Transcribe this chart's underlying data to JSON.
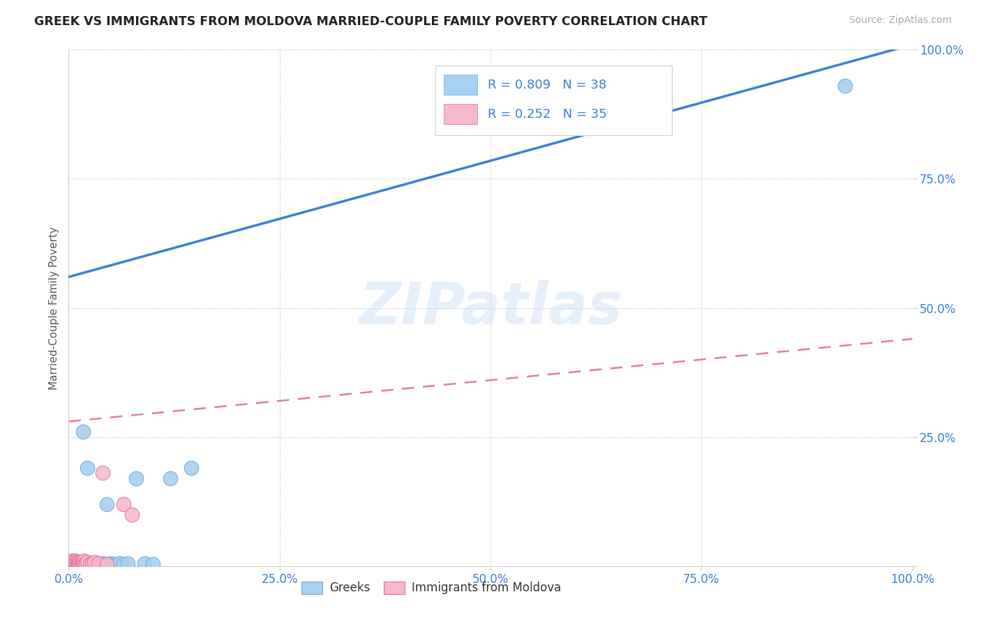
{
  "title": "GREEK VS IMMIGRANTS FROM MOLDOVA MARRIED-COUPLE FAMILY POVERTY CORRELATION CHART",
  "source": "Source: ZipAtlas.com",
  "ylabel": "Married-Couple Family Poverty",
  "xlim": [
    0,
    1
  ],
  "ylim": [
    0,
    1
  ],
  "xticks": [
    0,
    0.25,
    0.5,
    0.75,
    1.0
  ],
  "yticks": [
    0,
    0.25,
    0.5,
    0.75,
    1.0
  ],
  "xticklabels": [
    "0.0%",
    "25.0%",
    "50.0%",
    "75.0%",
    "100.0%"
  ],
  "yticklabels": [
    "",
    "25.0%",
    "50.0%",
    "75.0%",
    "100.0%"
  ],
  "greek_color": "#a8d0f0",
  "greek_edge_color": "#6aaee0",
  "moldova_color": "#f5b8cc",
  "moldova_edge_color": "#e07090",
  "trend_blue_color": "#3a7fd5",
  "trend_pink_color": "#e08090",
  "R_greek": 0.809,
  "N_greek": 38,
  "R_moldova": 0.252,
  "N_moldova": 35,
  "text_blue": "#3a7fd5",
  "text_dark": "#333333",
  "watermark": "ZIPatlas",
  "background_color": "#ffffff",
  "blue_trend_x0": 0.0,
  "blue_trend_y0": 0.56,
  "blue_trend_x1": 1.0,
  "blue_trend_y1": 1.01,
  "pink_trend_x0": 0.0,
  "pink_trend_y0": 0.28,
  "pink_trend_x1": 1.0,
  "pink_trend_y1": 0.44,
  "greek_x": [
    0.004,
    0.005,
    0.006,
    0.007,
    0.008,
    0.009,
    0.01,
    0.011,
    0.012,
    0.013,
    0.015,
    0.016,
    0.017,
    0.018,
    0.02,
    0.022,
    0.023,
    0.025,
    0.027,
    0.03,
    0.032,
    0.035,
    0.037,
    0.04,
    0.042,
    0.045,
    0.048,
    0.05,
    0.055,
    0.06,
    0.065,
    0.07,
    0.08,
    0.09,
    0.1,
    0.12,
    0.145,
    0.92
  ],
  "greek_y": [
    0.005,
    0.005,
    0.003,
    0.005,
    0.005,
    0.003,
    0.005,
    0.003,
    0.005,
    0.003,
    0.005,
    0.003,
    0.26,
    0.005,
    0.005,
    0.19,
    0.005,
    0.003,
    0.005,
    0.003,
    0.005,
    0.005,
    0.003,
    0.005,
    0.003,
    0.12,
    0.003,
    0.005,
    0.003,
    0.005,
    0.003,
    0.005,
    0.17,
    0.005,
    0.003,
    0.17,
    0.19,
    0.93
  ],
  "moldova_x": [
    0.002,
    0.003,
    0.003,
    0.004,
    0.004,
    0.005,
    0.005,
    0.006,
    0.006,
    0.007,
    0.007,
    0.008,
    0.008,
    0.009,
    0.01,
    0.01,
    0.011,
    0.012,
    0.013,
    0.014,
    0.015,
    0.016,
    0.017,
    0.018,
    0.019,
    0.02,
    0.022,
    0.025,
    0.028,
    0.03,
    0.035,
    0.04,
    0.045,
    0.065,
    0.075
  ],
  "moldova_y": [
    0.003,
    0.005,
    0.008,
    0.003,
    0.008,
    0.005,
    0.01,
    0.003,
    0.008,
    0.005,
    0.01,
    0.003,
    0.008,
    0.005,
    0.003,
    0.008,
    0.005,
    0.003,
    0.008,
    0.005,
    0.003,
    0.008,
    0.005,
    0.01,
    0.003,
    0.005,
    0.008,
    0.003,
    0.005,
    0.008,
    0.005,
    0.18,
    0.003,
    0.12,
    0.1
  ]
}
